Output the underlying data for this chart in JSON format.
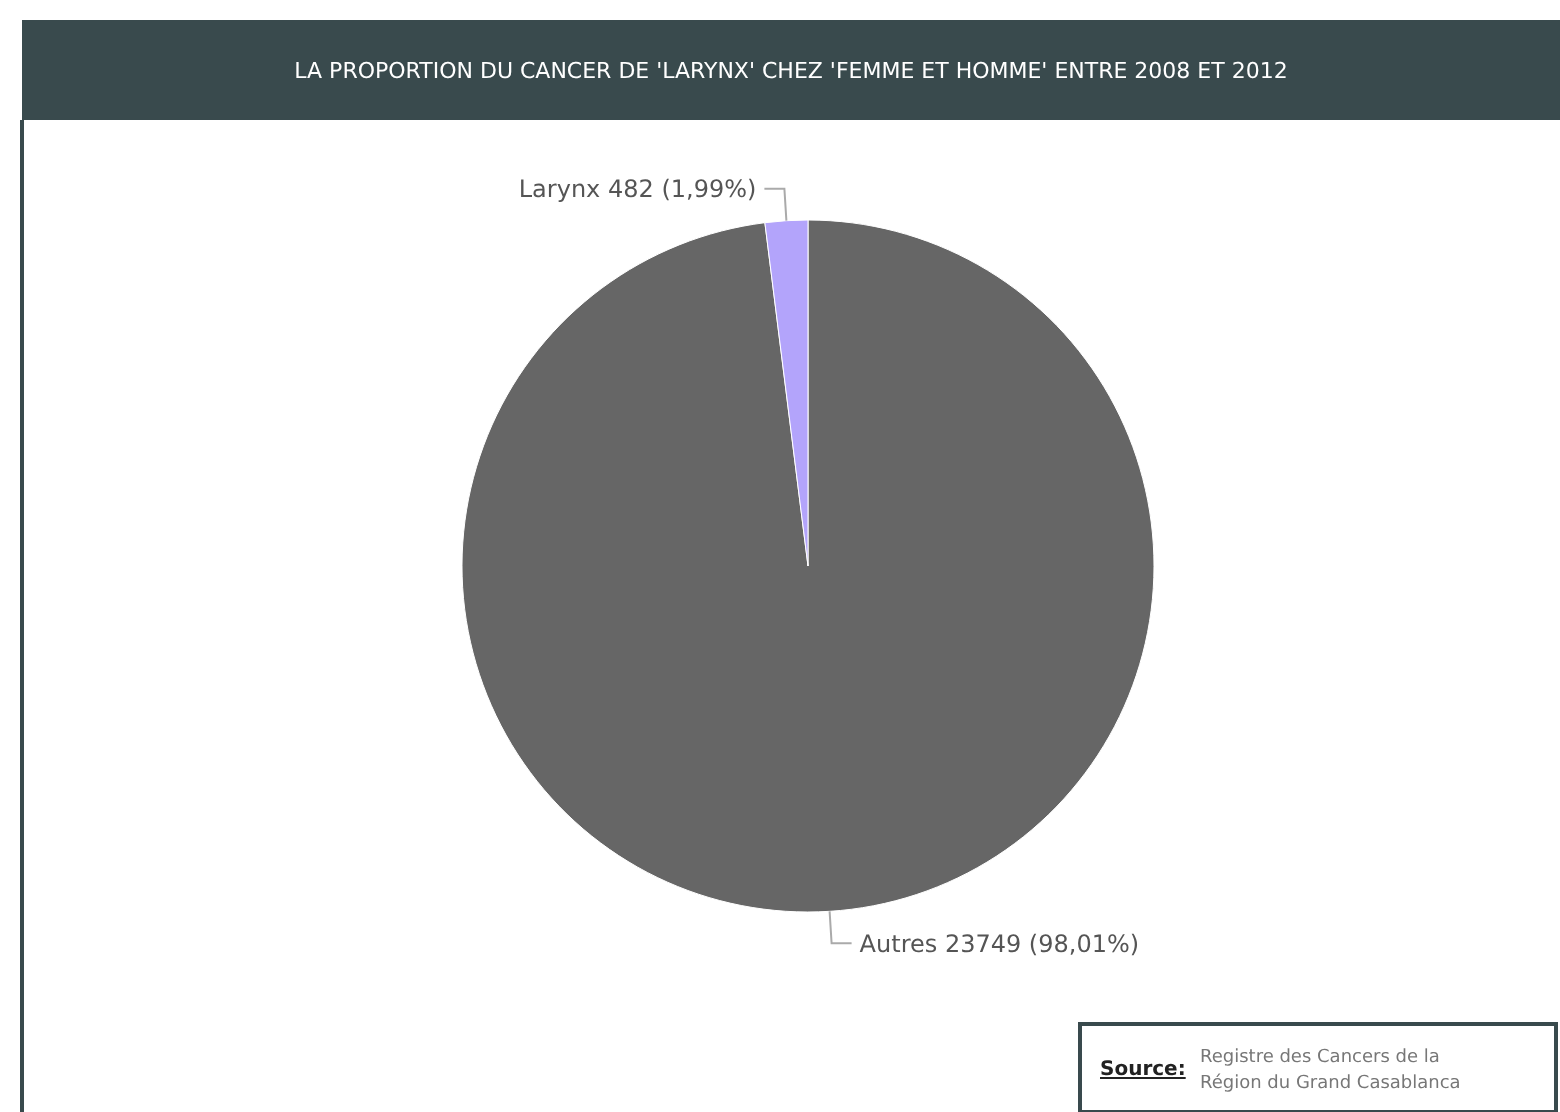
{
  "chart_data": {
    "type": "pie",
    "title": "LA PROPORTION DU CANCER DE 'LARYNX' CHEZ 'FEMME ET HOMME' ENTRE 2008 ET 2012",
    "categories": [
      "Autres",
      "Larynx"
    ],
    "values": [
      23749,
      482
    ],
    "colors": [
      "#666666",
      "#b3a4fb"
    ],
    "value_labels": [
      "23749 (98,01%)",
      "482 (1,99%)"
    ],
    "annotations": [
      "Source:",
      "Registre des Cancers de la Région du Grand Casablanca"
    ]
  }
}
